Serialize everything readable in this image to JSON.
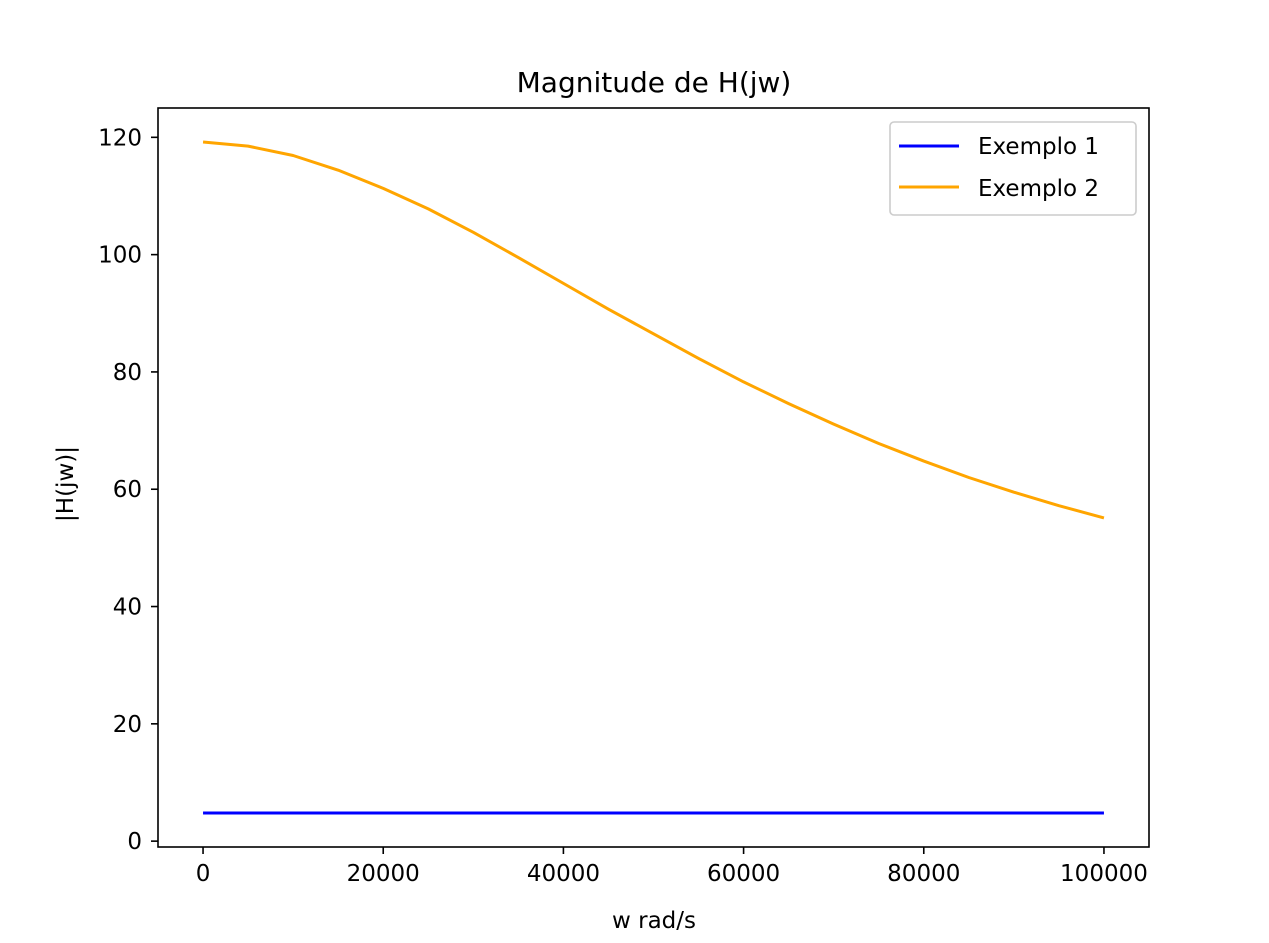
{
  "chart_data": {
    "type": "line",
    "title": "Magnitude de H(jw)",
    "xlabel": "w rad/s",
    "ylabel": "|H(jw)|",
    "xlim": [
      -5000,
      105000
    ],
    "ylim": [
      -1,
      125
    ],
    "x_ticks": [
      0,
      20000,
      40000,
      60000,
      80000,
      100000
    ],
    "x_tick_labels": [
      "0",
      "20000",
      "40000",
      "60000",
      "80000",
      "100000"
    ],
    "y_ticks": [
      0,
      20,
      40,
      60,
      80,
      100,
      120
    ],
    "y_tick_labels": [
      "0",
      "20",
      "40",
      "60",
      "80",
      "100",
      "120"
    ],
    "grid": false,
    "legend_position": "top-right",
    "series": [
      {
        "name": "Exemplo 1",
        "color": "#0000ff",
        "x": [
          0,
          10000,
          20000,
          30000,
          40000,
          50000,
          60000,
          70000,
          80000,
          90000,
          100000
        ],
        "y": [
          4.8,
          4.8,
          4.8,
          4.8,
          4.8,
          4.8,
          4.8,
          4.8,
          4.8,
          4.8,
          4.8
        ]
      },
      {
        "name": "Exemplo 2",
        "color": "#ffa500",
        "x": [
          0,
          5000,
          10000,
          15000,
          20000,
          25000,
          30000,
          35000,
          40000,
          45000,
          50000,
          55000,
          60000,
          65000,
          70000,
          75000,
          80000,
          85000,
          90000,
          95000,
          100000
        ],
        "y": [
          119.2,
          118.5,
          116.9,
          114.4,
          111.3,
          107.8,
          103.8,
          99.5,
          95.1,
          90.7,
          86.5,
          82.3,
          78.3,
          74.6,
          71.1,
          67.8,
          64.8,
          62.0,
          59.5,
          57.2,
          55.1
        ]
      }
    ]
  }
}
